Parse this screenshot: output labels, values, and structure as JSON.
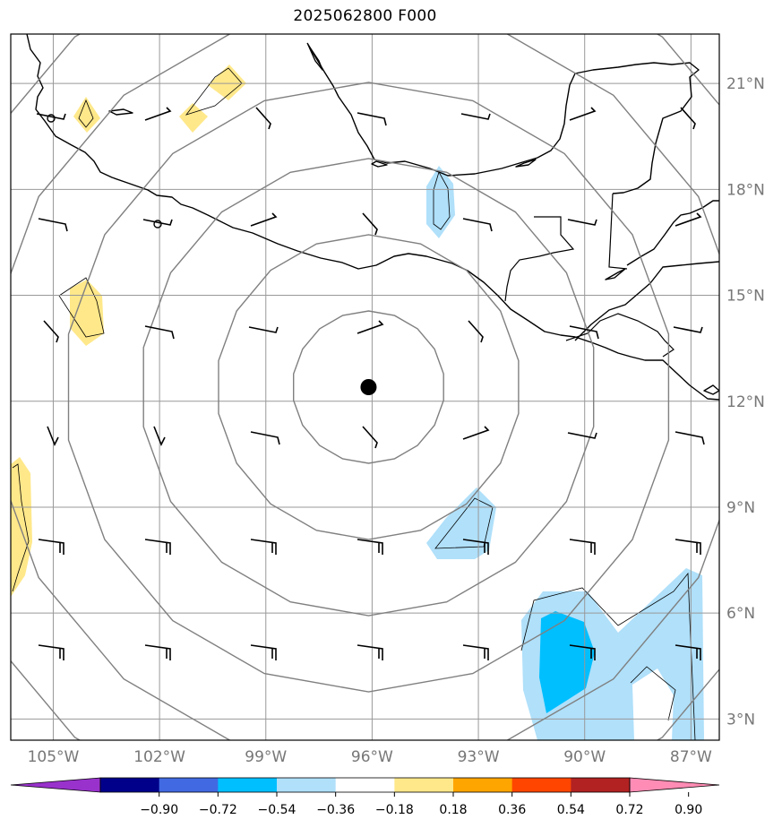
{
  "title": "2025062800 F000",
  "map": {
    "lat_range": [
      2.4,
      22.4
    ],
    "lon_range": [
      -106.2,
      -86.2
    ],
    "center_marker": {
      "lon": -96.1,
      "lat": 12.4
    },
    "ring_color": "#808080",
    "ring_radii_km": [
      240,
      480,
      720,
      960,
      1200,
      1440
    ],
    "grid_color": "#999999",
    "lat_ticks": [
      {
        "value": 21,
        "label": "21°N"
      },
      {
        "value": 18,
        "label": "18°N"
      },
      {
        "value": 15,
        "label": "15°N"
      },
      {
        "value": 12,
        "label": "12°N"
      },
      {
        "value": 9,
        "label": "9°N"
      },
      {
        "value": 6,
        "label": "6°N"
      },
      {
        "value": 3,
        "label": "3°N"
      }
    ],
    "lon_ticks": [
      {
        "value": -105,
        "label": "105°W"
      },
      {
        "value": -102,
        "label": "102°W"
      },
      {
        "value": -99,
        "label": "99°W"
      },
      {
        "value": -96,
        "label": "96°W"
      },
      {
        "value": -93,
        "label": "93°W"
      },
      {
        "value": -90,
        "label": "90°W"
      },
      {
        "value": -87,
        "label": "87°W"
      }
    ]
  },
  "colorbar": {
    "colors": [
      "#9932cc",
      "#00008b",
      "#4169e1",
      "#00bfff",
      "#b0e0fa",
      "#ffffff",
      "#ffe88a",
      "#ffa500",
      "#ff4500",
      "#b22222",
      "#ff8cb4"
    ],
    "ticks": [
      "−0.90",
      "−0.72",
      "−0.54",
      "−0.36",
      "−0.18",
      "0.18",
      "0.36",
      "0.54",
      "0.72",
      "0.90"
    ]
  },
  "icons": {
    "barb": "wind-barb-icon",
    "marker": "center-marker-icon"
  }
}
